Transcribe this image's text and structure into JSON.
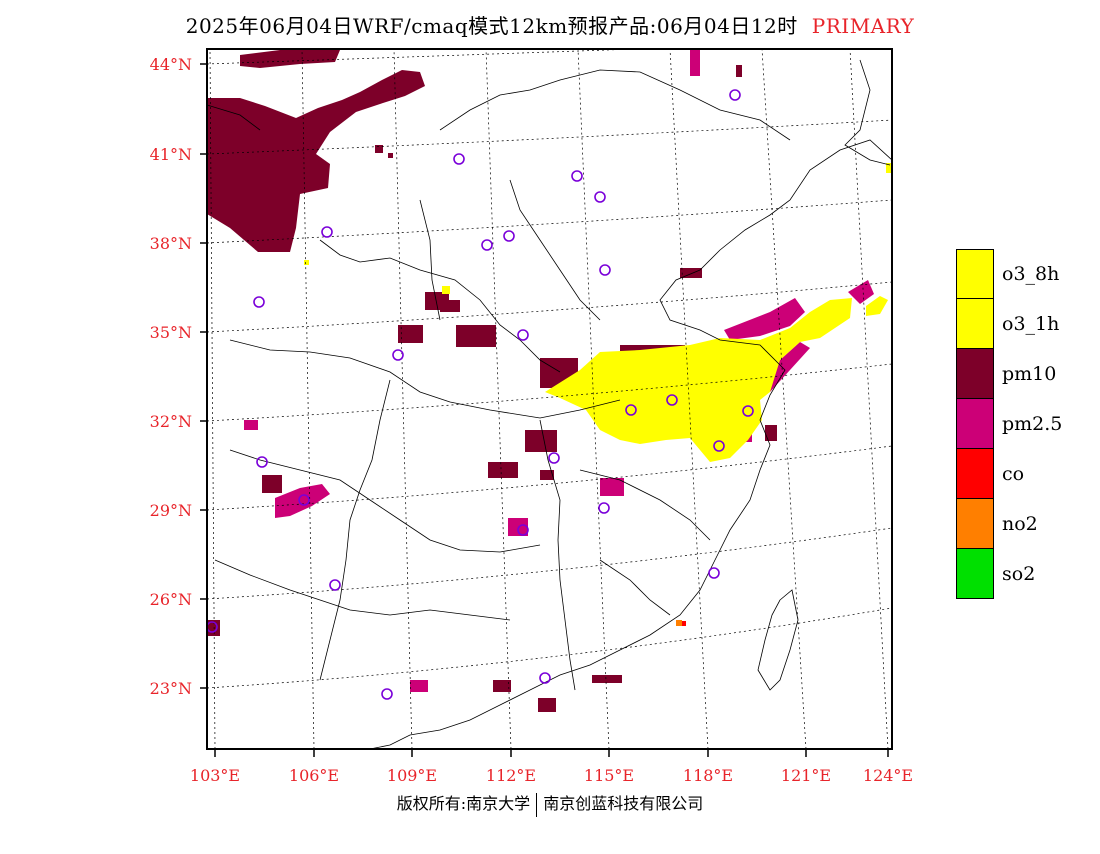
{
  "title": {
    "main": "2025年06月04日WRF/cmaq模式12km预报产品:06月04日12时",
    "tag": "PRIMARY"
  },
  "map": {
    "lat_labels": [
      "44°N",
      "41°N",
      "38°N",
      "35°N",
      "32°N",
      "29°N",
      "26°N",
      "23°N"
    ],
    "lon_labels": [
      "103°E",
      "106°E",
      "109°E",
      "112°E",
      "115°E",
      "118°E",
      "121°E",
      "124°E"
    ],
    "extent": {
      "lon_min": 102.7,
      "lon_max": 124,
      "lat_min": 21.2,
      "lat_max": 44.5
    }
  },
  "legend": [
    {
      "label": "o3_8h",
      "color": "#ffff00"
    },
    {
      "label": "o3_1h",
      "color": "#ffff00"
    },
    {
      "label": "pm10",
      "color": "#7d0029"
    },
    {
      "label": "pm2.5",
      "color": "#cc0077"
    },
    {
      "label": "co",
      "color": "#ff0000"
    },
    {
      "label": "no2",
      "color": "#ff7f00"
    },
    {
      "label": "so2",
      "color": "#00e000"
    }
  ],
  "copyright": {
    "left": "版权所有:南京大学",
    "right": "南京创蓝科技有限公司"
  },
  "colors": {
    "axis_label": "#e8242a",
    "station_marker": "#7a00d9"
  }
}
